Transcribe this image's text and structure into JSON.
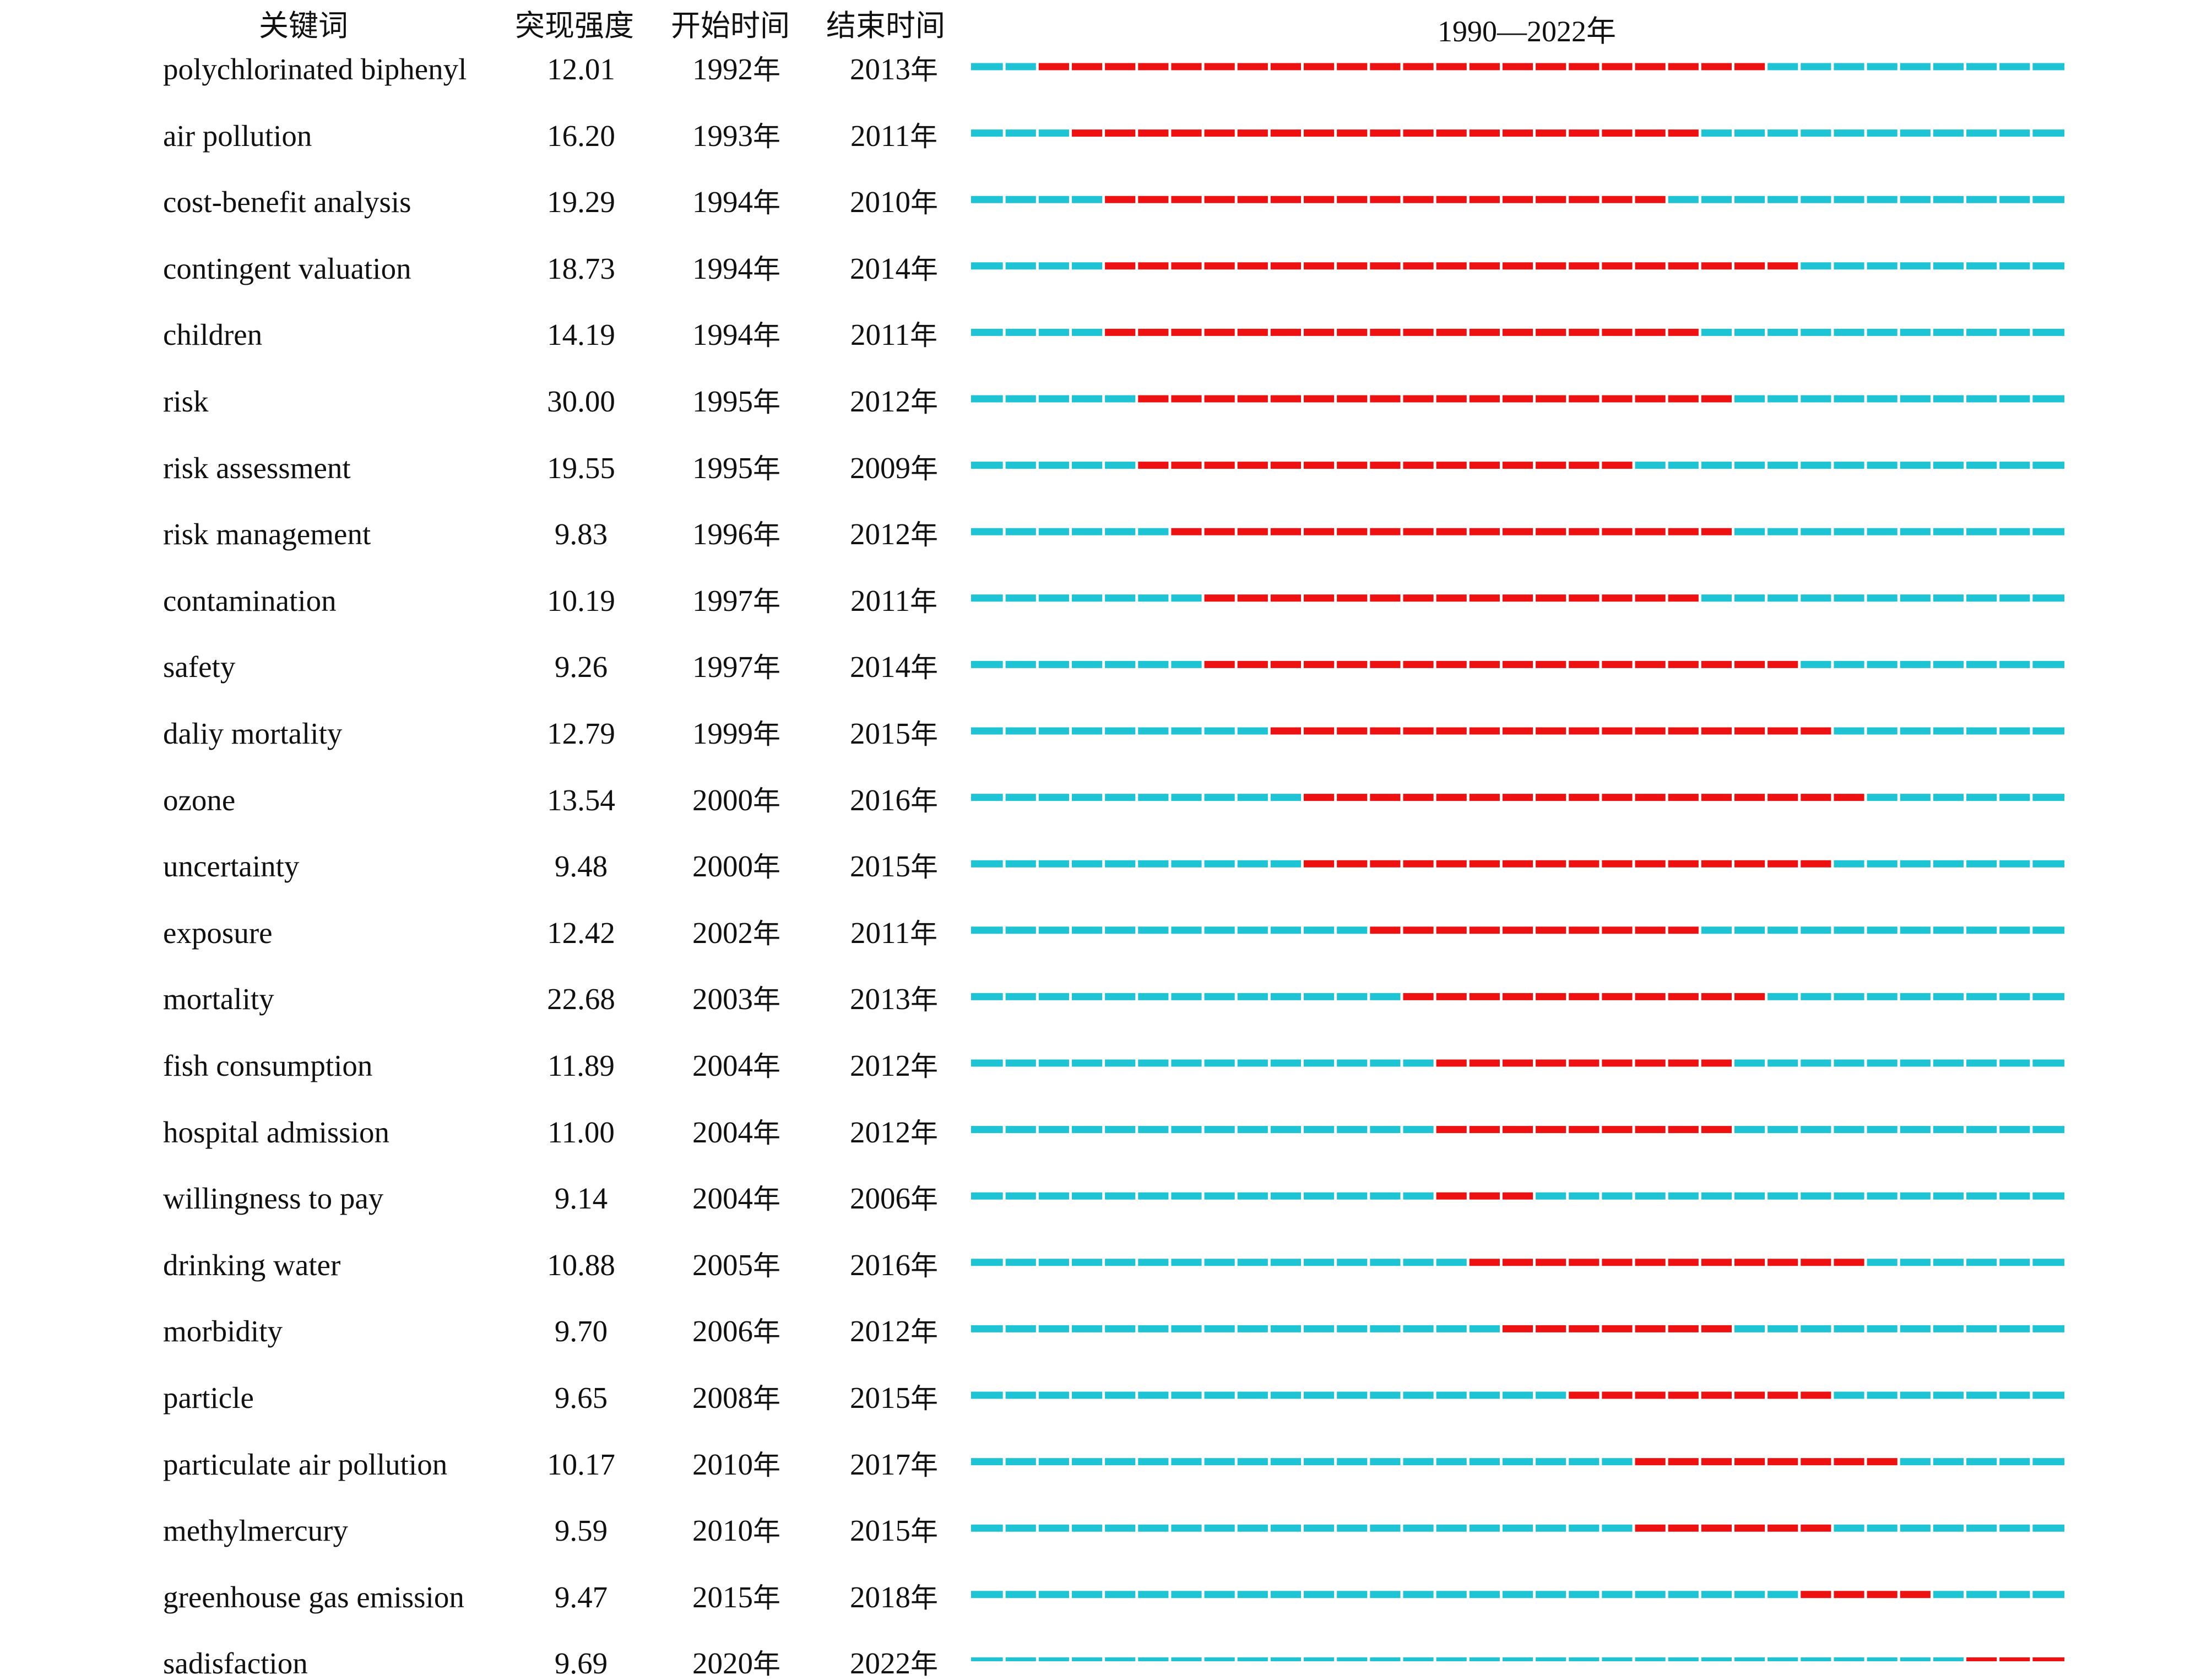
{
  "headers": {
    "keyword": "关键词",
    "strength": "突现强度",
    "begin": "开始时间",
    "end": "结束时间",
    "timeline": "1990—2022年"
  },
  "year_suffix": "年",
  "colors": {
    "burst": "#ee1111",
    "baseline": "#1ec3d4",
    "text": "#111111"
  },
  "chart_data": {
    "type": "burst-timeline",
    "range": [
      1990,
      2022
    ],
    "rows": [
      {
        "keyword": "polychlorinated biphenyl",
        "strength": "12.01",
        "begin": 1992,
        "end": 2013
      },
      {
        "keyword": "air pollution",
        "strength": "16.20",
        "begin": 1993,
        "end": 2011
      },
      {
        "keyword": "cost-benefit analysis",
        "strength": "19.29",
        "begin": 1994,
        "end": 2010
      },
      {
        "keyword": "contingent valuation",
        "strength": "18.73",
        "begin": 1994,
        "end": 2014
      },
      {
        "keyword": "children",
        "strength": "14.19",
        "begin": 1994,
        "end": 2011
      },
      {
        "keyword": "risk",
        "strength": "30.00",
        "begin": 1995,
        "end": 2012
      },
      {
        "keyword": "risk assessment",
        "strength": "19.55",
        "begin": 1995,
        "end": 2009
      },
      {
        "keyword": "risk management",
        "strength": "9.83",
        "begin": 1996,
        "end": 2012
      },
      {
        "keyword": "contamination",
        "strength": "10.19",
        "begin": 1997,
        "end": 2011
      },
      {
        "keyword": "safety",
        "strength": "9.26",
        "begin": 1997,
        "end": 2014
      },
      {
        "keyword": "daliy mortality",
        "strength": "12.79",
        "begin": 1999,
        "end": 2015
      },
      {
        "keyword": "ozone",
        "strength": "13.54",
        "begin": 2000,
        "end": 2016
      },
      {
        "keyword": "uncertainty",
        "strength": "9.48",
        "begin": 2000,
        "end": 2015
      },
      {
        "keyword": "exposure",
        "strength": "12.42",
        "begin": 2002,
        "end": 2011
      },
      {
        "keyword": "mortality",
        "strength": "22.68",
        "begin": 2003,
        "end": 2013
      },
      {
        "keyword": "fish consumption",
        "strength": "11.89",
        "begin": 2004,
        "end": 2012
      },
      {
        "keyword": "hospital admission",
        "strength": "11.00",
        "begin": 2004,
        "end": 2012
      },
      {
        "keyword": "willingness to pay",
        "strength": "9.14",
        "begin": 2004,
        "end": 2006
      },
      {
        "keyword": "drinking water",
        "strength": "10.88",
        "begin": 2005,
        "end": 2016
      },
      {
        "keyword": "morbidity",
        "strength": "9.70",
        "begin": 2006,
        "end": 2012
      },
      {
        "keyword": "particle",
        "strength": "9.65",
        "begin": 2008,
        "end": 2015
      },
      {
        "keyword": "particulate air pollution",
        "strength": "10.17",
        "begin": 2010,
        "end": 2017
      },
      {
        "keyword": "methylmercury",
        "strength": "9.59",
        "begin": 2010,
        "end": 2015
      },
      {
        "keyword": "greenhouse gas emission",
        "strength": "9.47",
        "begin": 2015,
        "end": 2018
      },
      {
        "keyword": "sadisfaction",
        "strength": "9.69",
        "begin": 2020,
        "end": 2022
      }
    ]
  }
}
